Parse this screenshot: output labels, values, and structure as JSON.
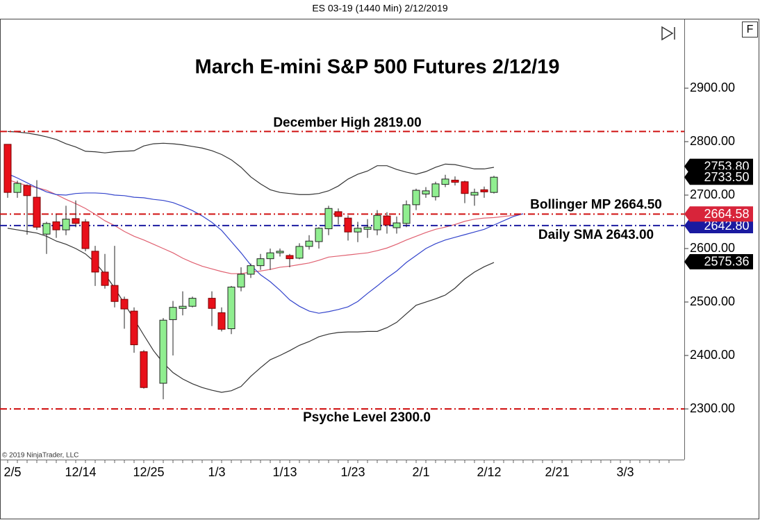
{
  "chart_data": {
    "type": "candlestick",
    "header": "ES 03-19 (1440 Min)  2/12/2019",
    "title": "March E-mini S&P 500 Futures 2/12/19",
    "copyright": "© 2019 NinjaTrader, LLC",
    "categories": [
      "2/5",
      null,
      null,
      null,
      null,
      null,
      null,
      "12/14",
      null,
      null,
      null,
      null,
      null,
      null,
      "12/25",
      null,
      null,
      null,
      null,
      null,
      null,
      "1/3",
      null,
      null,
      null,
      null,
      null,
      null,
      "1/13",
      null,
      null,
      null,
      null,
      null,
      null,
      "1/23",
      null,
      null,
      null,
      null,
      null,
      null,
      "2/1",
      null,
      null,
      null,
      null,
      null,
      null,
      "2/12",
      null,
      null,
      null,
      null,
      null,
      null,
      "2/21",
      null,
      null,
      null,
      null,
      null,
      null,
      "3/3",
      null,
      null,
      null,
      null,
      null
    ],
    "open": [
      2795,
      2705,
      2718,
      2696,
      2627,
      2650,
      2635,
      2656,
      2650,
      2595,
      2556,
      2531,
      2505,
      2483,
      2407,
      null,
      2348,
      2467,
      2488,
      2492,
      null,
      2507,
      2480,
      2450,
      2528,
      2552,
      2568,
      2581,
      2592,
      2587,
      2582,
      2604,
      2613,
      2637,
      2669,
      2657,
      2631,
      2636,
      2635,
      2661,
      2639,
      2647,
      2682,
      2702,
      2697,
      2720,
      2728,
      2725,
      2700,
      2710,
      2705,
      null,
      null,
      null,
      null,
      null,
      null,
      null,
      null,
      null,
      null,
      null,
      null,
      null,
      null,
      null,
      null,
      null,
      null
    ],
    "high": [
      2795,
      2727,
      2720,
      2728,
      2650,
      2664,
      2680,
      2690,
      2655,
      2605,
      2590,
      2605,
      2510,
      2490,
      2410,
      null,
      2470,
      2502,
      2520,
      2510,
      null,
      2520,
      2490,
      2530,
      2565,
      2572,
      2590,
      2600,
      2600,
      2590,
      2610,
      2625,
      2640,
      2680,
      2675,
      2662,
      2650,
      2655,
      2672,
      2668,
      2660,
      2690,
      2712,
      2715,
      2725,
      2738,
      2735,
      2727,
      2712,
      2716,
      2736,
      null,
      null,
      null,
      null,
      null,
      null,
      null,
      null,
      null,
      null,
      null,
      null,
      null,
      null,
      null,
      null,
      null,
      null
    ],
    "low": [
      2695,
      2695,
      2626,
      2635,
      2590,
      2620,
      2625,
      2640,
      2595,
      2530,
      2525,
      2490,
      2450,
      2405,
      2338,
      null,
      2318,
      2400,
      2475,
      2490,
      null,
      2455,
      2445,
      2440,
      2520,
      2545,
      2560,
      2560,
      2585,
      2565,
      2580,
      2598,
      2600,
      2625,
      2645,
      2615,
      2612,
      2620,
      2625,
      2628,
      2628,
      2640,
      2672,
      2695,
      2690,
      2715,
      2718,
      2685,
      2680,
      2695,
      2703,
      null,
      null,
      null,
      null,
      null,
      null,
      null,
      null,
      null,
      null,
      null,
      null,
      null,
      null,
      null,
      null,
      null,
      null
    ],
    "close": [
      2705,
      2722,
      2699,
      2640,
      2647,
      2635,
      2655,
      2647,
      2600,
      2556,
      2531,
      2501,
      2487,
      2420,
      2340,
      null,
      2466,
      2490,
      2492,
      2507,
      null,
      2488,
      2449,
      2528,
      2552,
      2568,
      2581,
      2592,
      2595,
      2581,
      2604,
      2614,
      2638,
      2675,
      2660,
      2631,
      2638,
      2640,
      2662,
      2644,
      2648,
      2682,
      2709,
      2708,
      2721,
      2730,
      2724,
      2703,
      2705,
      2706,
      2733.5,
      null,
      null,
      null,
      null,
      null,
      null,
      null,
      null,
      null,
      null,
      null,
      null,
      null,
      null,
      null,
      null,
      null,
      null
    ],
    "up_color": "#90ee90",
    "down_color": "#e8101a",
    "lines": [
      {
        "color": "#333333",
        "values": [
          2819,
          2818,
          2816,
          2813,
          2809,
          2804,
          2796,
          2790,
          2782,
          2781,
          2779,
          2781,
          2782,
          2783,
          2792,
          2796,
          2797,
          2796,
          2794,
          2791,
          2788,
          2783,
          2776,
          2766,
          2752,
          2734,
          2721,
          2710,
          2705,
          2703,
          2701,
          2701,
          2703,
          2708,
          2717,
          2730,
          2739,
          2745,
          2755,
          2755,
          2748,
          2743,
          2739,
          2744,
          2752,
          2758,
          2757,
          2753,
          2749,
          2749,
          2752,
          null,
          null,
          null,
          null,
          null,
          null,
          null,
          null,
          null,
          null,
          null,
          null,
          null,
          null,
          null,
          null,
          null,
          null
        ]
      },
      {
        "color": "#333333",
        "values": [
          2638,
          2635,
          2632,
          2629,
          2623,
          2614,
          2608,
          2600,
          2590,
          2574,
          2552,
          2526,
          2497,
          2468,
          2438,
          2409,
          2386,
          2368,
          2356,
          2347,
          2340,
          2335,
          2331,
          2334,
          2342,
          2361,
          2377,
          2392,
          2400,
          2409,
          2419,
          2426,
          2435,
          2440,
          2443,
          2444,
          2444,
          2445,
          2445,
          2452,
          2462,
          2478,
          2494,
          2500,
          2506,
          2513,
          2526,
          2543,
          2556,
          2566,
          2574,
          null,
          null,
          null,
          null,
          null,
          null,
          null,
          null,
          null,
          null,
          null,
          null,
          null,
          null,
          null,
          null,
          null,
          null
        ]
      },
      {
        "color": "#e06070",
        "values": [
          2729,
          2723,
          2718,
          2714,
          2709,
          2701,
          2692,
          2684,
          2675,
          2664,
          2652,
          2643,
          2632,
          2623,
          2616,
          2608,
          2600,
          2592,
          2582,
          2574,
          2567,
          2562,
          2557,
          2553,
          2553,
          2556,
          2558,
          2561,
          2565,
          2567,
          2570,
          2573,
          2578,
          2584,
          2586,
          2588,
          2590,
          2592,
          2596,
          2601,
          2608,
          2616,
          2623,
          2630,
          2636,
          2640,
          2645,
          2651,
          2655,
          2657,
          2658,
          2660,
          2662,
          2665,
          null,
          null,
          null,
          null,
          null,
          null,
          null,
          null,
          null,
          null,
          null,
          null,
          null,
          null,
          null
        ]
      },
      {
        "color": "#3344cc",
        "values": [
          2740,
          2732,
          2723,
          2714,
          2706,
          2701,
          2700,
          2703,
          2704,
          2704,
          2703,
          2700,
          2699,
          2696,
          2695,
          2692,
          2690,
          2686,
          2679,
          2671,
          2661,
          2649,
          2634,
          2613,
          2592,
          2569,
          2551,
          2538,
          2522,
          2504,
          2492,
          2483,
          2479,
          2482,
          2486,
          2491,
          2501,
          2516,
          2530,
          2545,
          2558,
          2574,
          2587,
          2600,
          2609,
          2616,
          2621,
          2626,
          2631,
          2636,
          2644,
          2652,
          2660,
          2665,
          null,
          null,
          null,
          null,
          null,
          null,
          null,
          null,
          null,
          null,
          null,
          null,
          null,
          null,
          null
        ]
      }
    ],
    "levels": [
      {
        "name": "December High 2819.00",
        "value": 2819,
        "color": "#d01010"
      },
      {
        "name": "Bollinger MP 2664.50",
        "value": 2664.5,
        "color": "#d01010"
      },
      {
        "name": "Daily SMA 2643.00",
        "value": 2643,
        "color": "#1a1aa0"
      },
      {
        "name": "Psyche Level 2300.0",
        "value": 2300,
        "color": "#d01010"
      }
    ],
    "price_markers": [
      {
        "value": 2753.8,
        "label": "2753.80",
        "color": "#000000"
      },
      {
        "value": 2733.5,
        "label": "2733.50",
        "color": "#000000"
      },
      {
        "value": 2642.8,
        "label": "2642.80",
        "color": "#1a1aa0"
      },
      {
        "value": 2664.58,
        "label": "2664.58",
        "color": "#d8243a"
      },
      {
        "value": 2575.36,
        "label": "2575.36",
        "color": "#000000"
      }
    ],
    "ylim": [
      2205.2,
      3028.6
    ],
    "yticks": [
      {
        "value": 2300,
        "label": "2300.00"
      },
      {
        "value": 2400,
        "label": "2400.00"
      },
      {
        "value": 2500,
        "label": "2500.00"
      },
      {
        "value": 2600,
        "label": "2600.00"
      },
      {
        "value": 2700,
        "label": "2700.00"
      },
      {
        "value": 2800,
        "label": "2800.00"
      },
      {
        "value": 2900,
        "label": "2900.00"
      }
    ]
  }
}
